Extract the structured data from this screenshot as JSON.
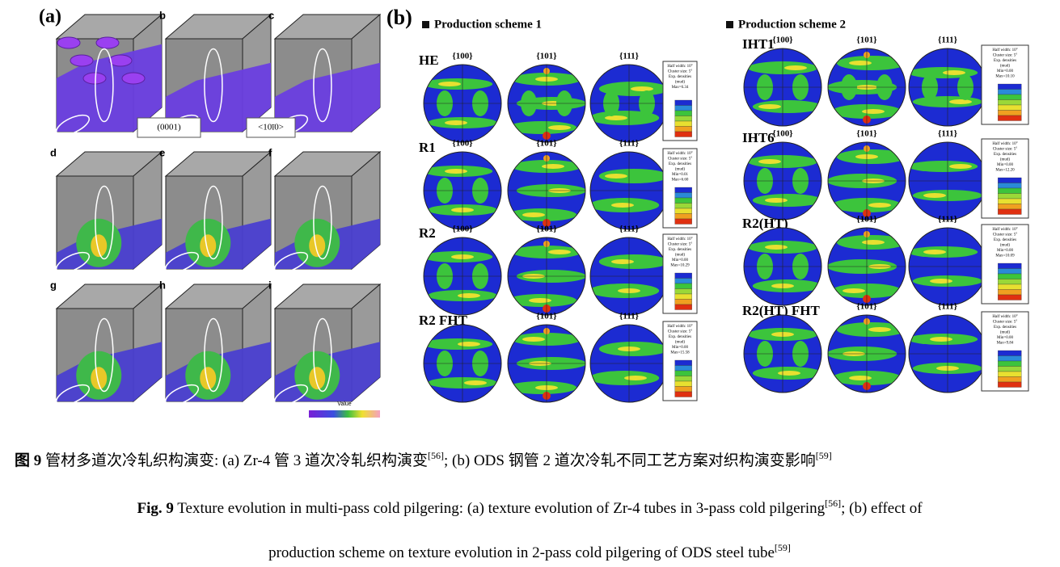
{
  "panel_a": {
    "label": "(a)",
    "subplot_labels": [
      null,
      "b",
      "c",
      "d",
      "e",
      "f",
      "g",
      "h",
      "i"
    ],
    "annotations": [
      "(0001)",
      "<10ī0>"
    ],
    "colorbar_label": "Value"
  },
  "panel_b": {
    "label": "(b)",
    "schemes": [
      {
        "title": "Production scheme 1",
        "rows": [
          {
            "name": "HE",
            "poles": [
              "{100}",
              "{101}",
              "{111}"
            ],
            "legend": [
              "Half width: 10°",
              "Cluster size: 5°",
              "Exp. densities",
              "(mud)",
              "Max=6.34"
            ]
          },
          {
            "name": "R1",
            "poles": [
              "{100}",
              "{101}",
              "{111}"
            ],
            "legend": [
              "Half width: 10°",
              "Cluster size: 5°",
              "Exp. densities",
              "(mud)",
              "Min=0.01",
              "Max=6.60"
            ]
          },
          {
            "name": "R2",
            "poles": [
              "{100}",
              "{101}",
              "{111}"
            ],
            "legend": [
              "Half width: 10°",
              "Cluster size: 5°",
              "Exp. densities",
              "(mud)",
              "Min=0.00",
              "Max=10.29"
            ]
          },
          {
            "name": "R2 FHT",
            "poles": [
              null,
              "{101}",
              "{111}"
            ],
            "legend": [
              "Half width: 10°",
              "Cluster size: 5°",
              "Exp. densities",
              "(mud)",
              "Min=0.00",
              "Max=15.58"
            ]
          }
        ]
      },
      {
        "title": "Production scheme 2",
        "rows": [
          {
            "name": "IHT1",
            "poles": [
              "{100}",
              "{101}",
              "{111}"
            ],
            "legend": [
              "Half width: 10°",
              "Cluster size: 5°",
              "Exp. densities",
              "(mud)",
              "Min=0.00",
              "Max=10.10"
            ]
          },
          {
            "name": "IHT6",
            "poles": [
              "{100}",
              "{101}",
              "{111}"
            ],
            "legend": [
              "Half width: 10°",
              "Cluster size: 5°",
              "Exp. densities",
              "(mud)",
              "Min=0.00",
              "Max=12.20"
            ]
          },
          {
            "name": "R2(HT)",
            "poles": [
              null,
              "{101}",
              "{111}"
            ],
            "legend": [
              "Half width: 10°",
              "Cluster size: 5°",
              "Exp. densities",
              "(mud)",
              "Min=0.00",
              "Max=10.09"
            ]
          },
          {
            "name": "R2(HT) FHT",
            "poles": [
              null,
              "{101}",
              "{111}"
            ],
            "legend": [
              "Half width: 10°",
              "Cluster size: 5°",
              "Exp. densities",
              "(mud)",
              "Min=0.00",
              "Max=9.84"
            ]
          }
        ]
      }
    ]
  },
  "caption": {
    "cn": {
      "label": "图 9",
      "text1": " 管材多道次冷轧织构演变: (a) Zr-4 管 3 道次冷轧织构演变",
      "ref1": "[56]",
      "text2": "; (b) ODS 钢管 2 道次冷轧不同工艺方案对织构演变影响",
      "ref2": "[59]"
    },
    "en": {
      "label": "Fig. 9",
      "text1": " Texture evolution in multi-pass cold pilgering: (a) texture evolution of Zr-4 tubes in 3-pass cold pilgering",
      "ref1": "[56]",
      "text2": "; (b) effect of",
      "text3": "production scheme on texture evolution in 2-pass cold pilgering of ODS steel tube",
      "ref2": "[59]"
    }
  }
}
